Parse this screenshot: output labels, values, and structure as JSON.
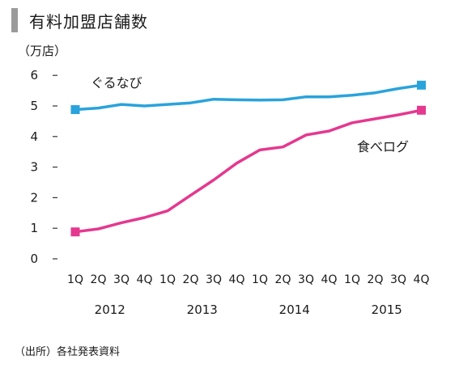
{
  "header": {
    "title": "有料加盟店舗数"
  },
  "chart_data": {
    "type": "line",
    "unit_label": "（万店）",
    "ylim": [
      0,
      6
    ],
    "yticks": [
      "0",
      "1",
      "2",
      "3",
      "4",
      "5",
      "6"
    ],
    "categories": [
      "1Q",
      "2Q",
      "3Q",
      "4Q",
      "1Q",
      "2Q",
      "3Q",
      "4Q",
      "1Q",
      "2Q",
      "3Q",
      "4Q",
      "1Q",
      "2Q",
      "3Q",
      "4Q"
    ],
    "years": [
      "2012",
      "2013",
      "2014",
      "2015"
    ],
    "series": [
      {
        "name": "ぐるなび",
        "color": "#29a3dc",
        "values": [
          4.88,
          4.93,
          5.05,
          5.0,
          5.05,
          5.1,
          5.22,
          5.2,
          5.19,
          5.2,
          5.3,
          5.3,
          5.35,
          5.43,
          5.57,
          5.68
        ]
      },
      {
        "name": "食べログ",
        "color": "#e5388f",
        "values": [
          0.88,
          0.98,
          1.18,
          1.35,
          1.57,
          2.08,
          2.58,
          3.13,
          3.56,
          3.66,
          4.05,
          4.18,
          4.45,
          4.58,
          4.71,
          4.86
        ]
      }
    ],
    "grid": false,
    "legend": "inline labels"
  },
  "footer": {
    "source": "（出所）各社発表資料"
  }
}
